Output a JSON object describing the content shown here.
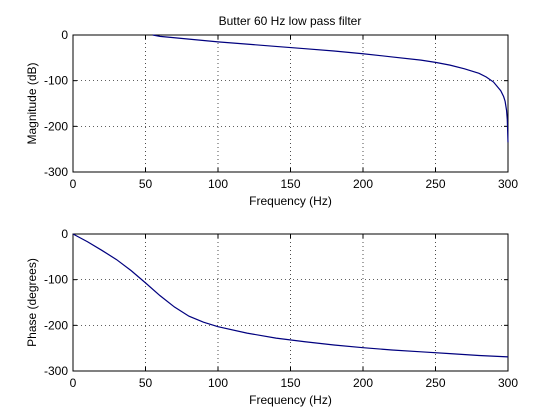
{
  "title": "Butter 60 Hz low pass filter",
  "colors": {
    "series": "#00007f",
    "axis": "#000000",
    "background": "#ffffff"
  },
  "chart_data": [
    {
      "type": "line",
      "title": "Butter 60 Hz low pass filter",
      "xlabel": "Frequency (Hz)",
      "ylabel": "Magnitude (dB)",
      "xlim": [
        0,
        300
      ],
      "ylim": [
        -300,
        0
      ],
      "xticks": [
        0,
        50,
        100,
        150,
        200,
        250,
        300
      ],
      "yticks": [
        0,
        -100,
        -200,
        -300
      ],
      "xtick_labels": [
        "0",
        "50",
        "100",
        "150",
        "200",
        "250",
        "300"
      ],
      "ytick_labels": [
        "0",
        "-100",
        "-200",
        "-300"
      ],
      "grid": true,
      "series": [
        {
          "x": [
            55,
            60,
            70,
            80,
            90,
            100,
            120,
            140,
            160,
            180,
            200,
            220,
            240,
            250,
            260,
            270,
            280,
            285,
            290,
            295,
            297,
            298,
            299,
            299.5,
            300
          ],
          "y": [
            0,
            -3,
            -6,
            -9,
            -12,
            -15,
            -20,
            -25,
            -30,
            -35,
            -41,
            -48,
            -55,
            -60,
            -66,
            -74,
            -84,
            -92,
            -103,
            -122,
            -135,
            -145,
            -165,
            -185,
            -235
          ]
        }
      ]
    },
    {
      "type": "line",
      "xlabel": "Frequency (Hz)",
      "ylabel": "Phase (degrees)",
      "xlim": [
        0,
        300
      ],
      "ylim": [
        -300,
        0
      ],
      "xticks": [
        0,
        50,
        100,
        150,
        200,
        250,
        300
      ],
      "yticks": [
        0,
        -100,
        -200,
        -300
      ],
      "xtick_labels": [
        "0",
        "50",
        "100",
        "150",
        "200",
        "250",
        "300"
      ],
      "ytick_labels": [
        "0",
        "-100",
        "-200",
        "-300"
      ],
      "grid": true,
      "series": [
        {
          "x": [
            0,
            10,
            20,
            30,
            40,
            50,
            60,
            70,
            80,
            90,
            100,
            120,
            140,
            160,
            180,
            200,
            220,
            240,
            260,
            280,
            300
          ],
          "y": [
            0,
            -17,
            -36,
            -56,
            -80,
            -107,
            -135,
            -160,
            -180,
            -193,
            -203,
            -217,
            -228,
            -236,
            -243,
            -249,
            -254,
            -258,
            -262,
            -266,
            -269
          ]
        }
      ]
    }
  ]
}
